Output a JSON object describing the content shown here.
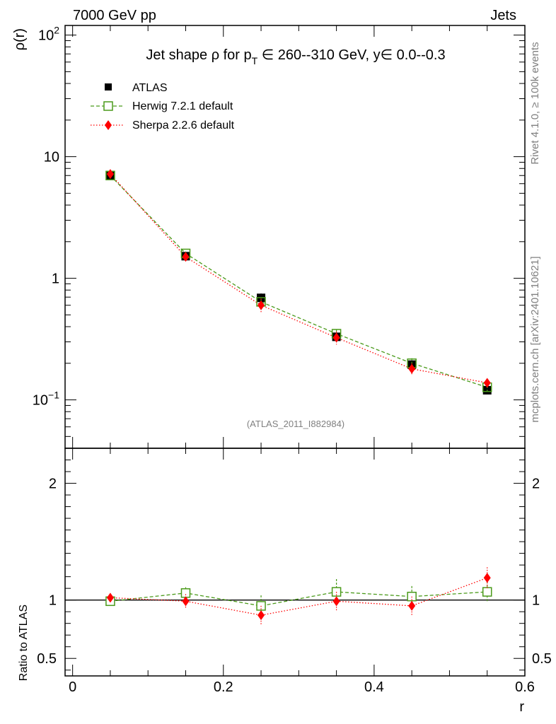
{
  "header": {
    "energy_label": "7000 GeV pp",
    "process_label": "Jets",
    "analysis_id": "(ATLAS_2011_I882984)",
    "side_rivet": "Rivet 4.1.0, ≥ 100k events",
    "side_mcplots": "mcplots.cern.ch [arXiv:2401.10621]"
  },
  "colors": {
    "atlas": "#000000",
    "herwig": "#4a9a1a",
    "sherpa": "#ff0000"
  },
  "chart_data": [
    {
      "type": "scatter",
      "panel": "main",
      "title": {
        "prefix": "Jet shape ρ for p",
        "sub": "T",
        "suffix": " ∈ 260--310 GeV, y∈ 0.0--0.3"
      },
      "xlabel": "r",
      "ylabel": "ρ(r)",
      "yscale": "log",
      "xlim": [
        -0.01,
        0.6
      ],
      "ylim": [
        0.04,
        120
      ],
      "y_ticks": [
        {
          "value": 100,
          "base": "10",
          "exp": "2"
        },
        {
          "value": 10,
          "base": "10",
          "exp": ""
        },
        {
          "value": 1,
          "base": "1",
          "exp": ""
        },
        {
          "value": 0.1,
          "base": "10",
          "exp": "−1"
        }
      ],
      "legend": {
        "position": "top-left",
        "entries": [
          "ATLAS",
          "Herwig 7.2.1 default",
          "Sherpa 2.2.6 default"
        ]
      },
      "series": [
        {
          "name": "ATLAS",
          "style": "square-filled",
          "x": [
            0.05,
            0.15,
            0.25,
            0.35,
            0.45,
            0.55
          ],
          "y": [
            7.05,
            1.52,
            0.69,
            0.33,
            0.195,
            0.12
          ],
          "err": [
            0.25,
            0.12,
            0.06,
            0.025,
            0.015,
            0.008
          ]
        },
        {
          "name": "Herwig 7.2.1 default",
          "style": "square-open-dashed",
          "x": [
            0.05,
            0.15,
            0.25,
            0.35,
            0.45,
            0.55
          ],
          "y": [
            7.0,
            1.6,
            0.64,
            0.35,
            0.2,
            0.127
          ],
          "err": [
            0.1,
            0.06,
            0.04,
            0.03,
            0.02,
            0.012
          ]
        },
        {
          "name": "Sherpa 2.2.6 default",
          "style": "diamond-filled-dotted",
          "x": [
            0.05,
            0.15,
            0.25,
            0.35,
            0.45,
            0.55
          ],
          "y": [
            7.2,
            1.5,
            0.6,
            0.325,
            0.18,
            0.138
          ],
          "err": [
            0.3,
            0.1,
            0.08,
            0.04,
            0.02,
            0.01
          ]
        }
      ]
    },
    {
      "type": "scatter",
      "panel": "ratio",
      "xlabel": "r",
      "ylabel": "Ratio to ATLAS",
      "xlim": [
        -0.01,
        0.6
      ],
      "ylim": [
        0.35,
        2.3
      ],
      "x_ticks": [
        "0",
        "0.2",
        "0.4",
        "0.6"
      ],
      "x_tick_values": [
        0,
        0.2,
        0.4,
        0.6
      ],
      "y_ticks": [
        "0.5",
        "1",
        "2"
      ],
      "y_tick_values": [
        0.5,
        1,
        2
      ],
      "reference_line": 1,
      "series": [
        {
          "name": "Herwig 7.2.1 default",
          "x": [
            0.05,
            0.15,
            0.25,
            0.35,
            0.45,
            0.55
          ],
          "y": [
            0.99,
            1.06,
            0.95,
            1.07,
            1.03,
            1.07
          ],
          "err": [
            0.015,
            0.05,
            0.09,
            0.11,
            0.09,
            0.09
          ]
        },
        {
          "name": "Sherpa 2.2.6 default",
          "x": [
            0.05,
            0.15,
            0.25,
            0.35,
            0.45,
            0.55
          ],
          "y": [
            1.02,
            0.99,
            0.87,
            0.99,
            0.95,
            1.19
          ],
          "err": [
            0.01,
            0.06,
            0.08,
            0.08,
            0.08,
            0.09
          ]
        }
      ]
    }
  ]
}
